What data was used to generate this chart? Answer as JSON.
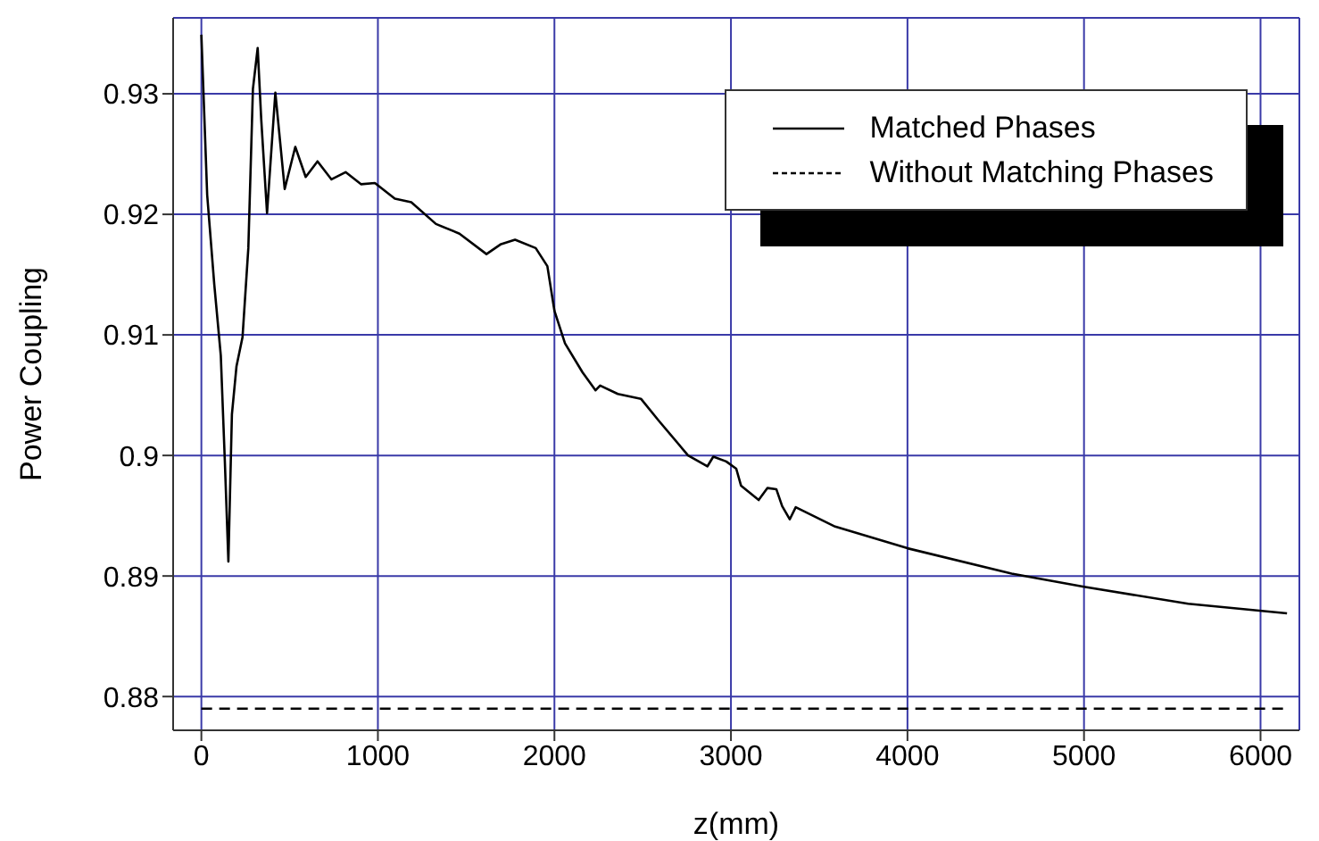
{
  "chart_data": {
    "type": "line",
    "xlabel": "z(mm)",
    "ylabel": "Power Coupling",
    "xlim": [
      -160,
      6220
    ],
    "xticks": [
      0,
      1000,
      2000,
      3000,
      4000,
      5000,
      6000
    ],
    "ylim": [
      0.8772,
      0.9363
    ],
    "yticks": [
      0.88,
      0.89,
      0.9,
      0.91,
      0.92,
      0.93
    ],
    "grid": true,
    "legend": "top right",
    "marker": "none",
    "series": [
      {
        "name": "Matched Phases",
        "color": "#000000",
        "line_style": "solid",
        "x": [
          0,
          33,
          73,
          110,
          133,
          153,
          173,
          199,
          233,
          266,
          292,
          319,
          339,
          372,
          419,
          472,
          532,
          591,
          658,
          737,
          817,
          904,
          983,
          1096,
          1189,
          1329,
          1462,
          1615,
          1694,
          1777,
          1894,
          1960,
          2000,
          2060,
          2159,
          2233,
          2259,
          2359,
          2490,
          2590,
          2757,
          2867,
          2900,
          2973,
          3030,
          3057,
          3157,
          3207,
          3257,
          3290,
          3333,
          3367,
          3590,
          4000,
          4590,
          5000,
          5590,
          6150
        ],
        "values": [
          0.9349,
          0.9216,
          0.9142,
          0.9083,
          0.8995,
          0.8912,
          0.9034,
          0.9074,
          0.9098,
          0.9172,
          0.9304,
          0.9338,
          0.9279,
          0.9201,
          0.9301,
          0.9221,
          0.9256,
          0.9231,
          0.9244,
          0.9229,
          0.9235,
          0.9225,
          0.9226,
          0.9213,
          0.921,
          0.9192,
          0.9184,
          0.9167,
          0.9175,
          0.9179,
          0.9172,
          0.9157,
          0.912,
          0.9093,
          0.9069,
          0.9054,
          0.9058,
          0.9051,
          0.9047,
          0.9029,
          0.9,
          0.8991,
          0.8999,
          0.8995,
          0.8989,
          0.8975,
          0.8963,
          0.8973,
          0.8972,
          0.8958,
          0.8947,
          0.8957,
          0.8941,
          0.8923,
          0.8902,
          0.8891,
          0.8877,
          0.8869
        ]
      },
      {
        "name": "Without Matching Phases",
        "color": "#000000",
        "line_style": "dashed",
        "x": [
          0,
          6150
        ],
        "values": [
          0.879,
          0.879
        ]
      }
    ]
  }
}
